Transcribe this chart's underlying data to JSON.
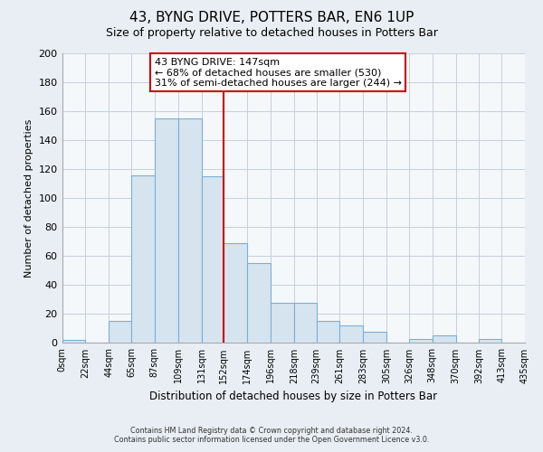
{
  "title": "43, BYNG DRIVE, POTTERS BAR, EN6 1UP",
  "subtitle": "Size of property relative to detached houses in Potters Bar",
  "xlabel": "Distribution of detached houses by size in Potters Bar",
  "ylabel": "Number of detached properties",
  "footer_line1": "Contains HM Land Registry data © Crown copyright and database right 2024.",
  "footer_line2": "Contains public sector information licensed under the Open Government Licence v3.0.",
  "bar_color": "#d6e4f0",
  "bar_edge_color": "#7bafd4",
  "reference_line_color": "#cc0000",
  "annotation_text_line1": "43 BYNG DRIVE: 147sqm",
  "annotation_text_line2": "← 68% of detached houses are smaller (530)",
  "annotation_text_line3": "31% of semi-detached houses are larger (244) →",
  "annotation_box_facecolor": "#ffffff",
  "annotation_box_edgecolor": "#cc0000",
  "ylim": [
    0,
    200
  ],
  "yticks": [
    0,
    20,
    40,
    60,
    80,
    100,
    120,
    140,
    160,
    180,
    200
  ],
  "bin_edges": [
    0,
    22,
    44,
    65,
    87,
    109,
    131,
    152,
    174,
    196,
    218,
    239,
    261,
    283,
    305,
    326,
    348,
    370,
    392,
    413,
    435
  ],
  "bar_heights": [
    2,
    0,
    15,
    116,
    155,
    155,
    115,
    69,
    55,
    28,
    28,
    15,
    12,
    8,
    0,
    3,
    5,
    0,
    3,
    0
  ],
  "background_color": "#e8eef4",
  "plot_bg_color": "#f5f8fb",
  "grid_color": "#c5d0dc",
  "ref_line_x": 152
}
